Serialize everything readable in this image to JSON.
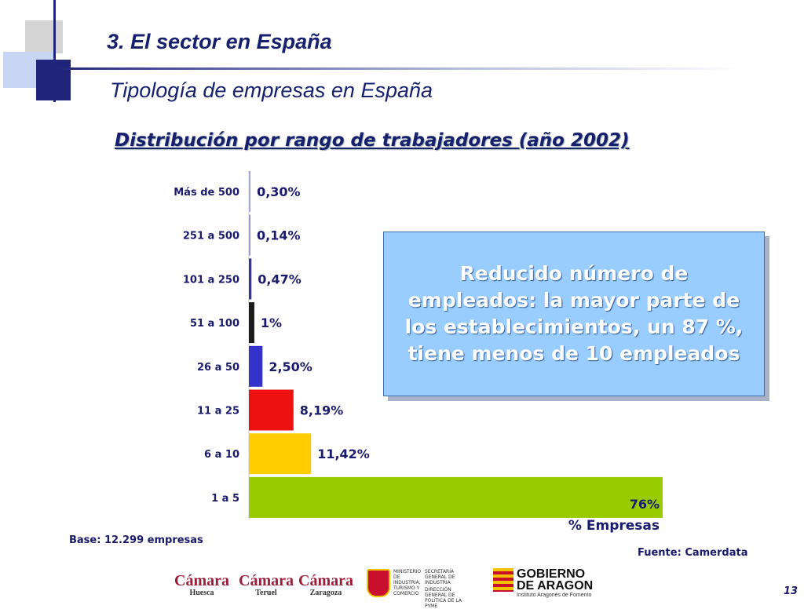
{
  "header": {
    "section_title": "3. El sector en España",
    "subtitle": "Tipología de empresas en España",
    "chart_title": "Distribución por rango de trabajadores (año 2002)"
  },
  "chart_data": {
    "type": "bar",
    "orientation": "horizontal",
    "title": "Distribución por rango de trabajadores (año 2002)",
    "xlabel": "% Empresas",
    "ylabel": "",
    "xlim": [
      0,
      76
    ],
    "grid": false,
    "legend": "none",
    "categories": [
      "Más de 500",
      "251 a 500",
      "101 a 250",
      "51 a 100",
      "26 a 50",
      "11 a 25",
      "6 a 10",
      "1 a 5"
    ],
    "values": [
      0.3,
      0.14,
      0.47,
      1,
      2.5,
      8.19,
      11.42,
      76
    ],
    "value_labels": [
      "0,30%",
      "0,14%",
      "0,47%",
      "1%",
      "2,50%",
      "8,19%",
      "11,42%",
      "76%"
    ],
    "colors": [
      "#a9a9d6",
      "#9999cc",
      "#333399",
      "#1c1c1c",
      "#3333cc",
      "#ee1111",
      "#ffcc00",
      "#99cc00"
    ]
  },
  "callout": {
    "text": "Reducido número de empleados: la mayor parte de los establecimientos, un 87 %, tiene menos de 10  empleados"
  },
  "footer": {
    "base_note": "Base: 12.299 empresas",
    "source_note": "Fuente: Camerdata",
    "page_number": "13"
  },
  "logos": {
    "camara_huesca": {
      "name": "Cámara",
      "city": "Huesca"
    },
    "camara_teruel": {
      "name": "Cámara",
      "city": "Teruel"
    },
    "camara_zaragoza": {
      "name": "Cámara",
      "city": "Zaragoza"
    },
    "ministerio": {
      "left": "MINISTERIO DE INDUSTRIA, TURISMO Y COMERCIO",
      "right_top": "SECRETARÍA GENERAL DE INDUSTRIA",
      "right_bottom": "DIRECCIÓN GENERAL DE POLÍTICA DE LA PYME"
    },
    "gobierno": {
      "line1": "GOBIERNO",
      "line2": "DE ARAGON",
      "sub": "Instituto Aragonés de Fomento"
    }
  }
}
